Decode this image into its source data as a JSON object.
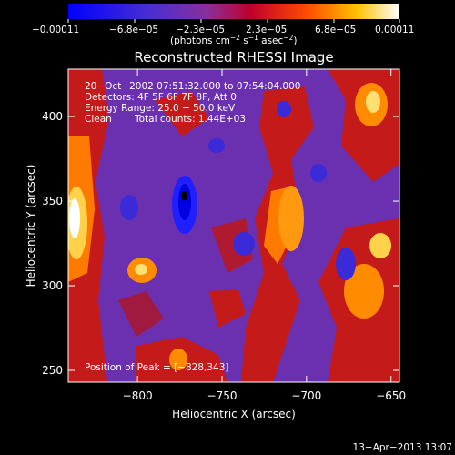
{
  "chart_data": {
    "type": "heatmap",
    "title": "Reconstructed RHESSI Image",
    "xlabel": "Heliocentric X (arcsec)",
    "ylabel": "Heliocentric Y (arcsec)",
    "xlim": [
      -841,
      -645
    ],
    "ylim": [
      243,
      428
    ],
    "x_ticks": [
      {
        "value": -800,
        "label": "−800"
      },
      {
        "value": -750,
        "label": "−750"
      },
      {
        "value": -700,
        "label": "−700"
      },
      {
        "value": -650,
        "label": "−650"
      }
    ],
    "y_ticks": [
      {
        "value": 250,
        "label": "250"
      },
      {
        "value": 300,
        "label": "300"
      },
      {
        "value": 350,
        "label": "350"
      },
      {
        "value": 400,
        "label": "400"
      }
    ],
    "colorbar": {
      "range": [
        -0.00011,
        0.00011
      ],
      "tick_labels": [
        "−0.00011",
        "−6.8e−05",
        "−2.3e−05",
        "2.3e−05",
        "6.8e−05",
        "0.00011"
      ],
      "unit_main": "(photons cm",
      "unit_sup1": "−2",
      "unit_mid": " s",
      "unit_sup2": "−1",
      "unit_mid2": " asec",
      "unit_sup3": "−2",
      "unit_end": ")"
    },
    "annotations": {
      "time": "20−Oct−2002 07:51:32.000 to 07:54:04.000",
      "detectors": "Detectors: 4F 5F 6F 7F 8F, Att 0",
      "energy": "Energy Range: 25.0 − 50.0 keV",
      "method": "Clean",
      "counts": "Total counts: 1.44E+03",
      "peak": "Position of Peak = [−828,343]"
    },
    "peak": {
      "x": -828,
      "y": 343
    },
    "footer": "13−Apr−2013 13:07",
    "colors": {
      "min": "#0000ff",
      "low": "#5a2fa8",
      "mid": "#c0002c",
      "high": "#ff8c00",
      "max": "#ffffff"
    }
  }
}
